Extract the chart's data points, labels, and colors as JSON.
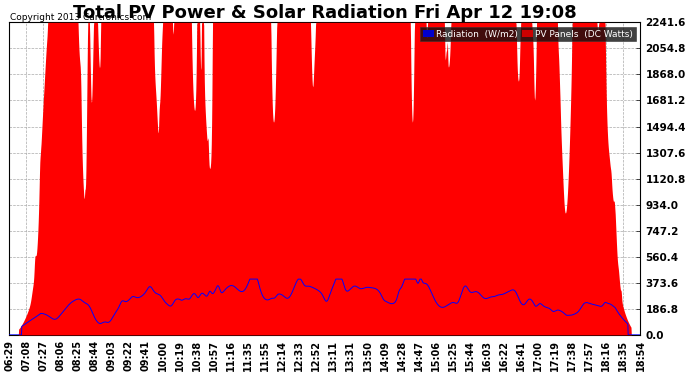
{
  "title": "Total PV Power & Solar Radiation Fri Apr 12 19:08",
  "copyright": "Copyright 2013 Cartronics.com",
  "y_max": 2241.6,
  "y_min": 0.0,
  "y_ticks": [
    0.0,
    186.8,
    373.6,
    560.4,
    747.2,
    934.0,
    1120.8,
    1307.6,
    1494.4,
    1681.2,
    1868.0,
    2054.8,
    2241.6
  ],
  "bg_color": "#ffffff",
  "plot_bg_color": "#ffffff",
  "grid_color": "#aaaaaa",
  "pv_color": "#ff0000",
  "radiation_color": "#0000ff",
  "title_fontsize": 13,
  "tick_fontsize": 7.5,
  "x_labels": [
    "06:29",
    "07:08",
    "07:27",
    "08:06",
    "08:25",
    "08:44",
    "09:03",
    "09:22",
    "09:41",
    "10:00",
    "10:19",
    "10:38",
    "10:57",
    "11:16",
    "11:35",
    "11:55",
    "12:14",
    "12:33",
    "12:52",
    "13:11",
    "13:31",
    "13:50",
    "14:09",
    "14:28",
    "14:47",
    "15:06",
    "15:25",
    "15:44",
    "16:03",
    "16:22",
    "16:41",
    "17:00",
    "17:19",
    "17:38",
    "17:57",
    "18:16",
    "18:35",
    "18:54"
  ]
}
